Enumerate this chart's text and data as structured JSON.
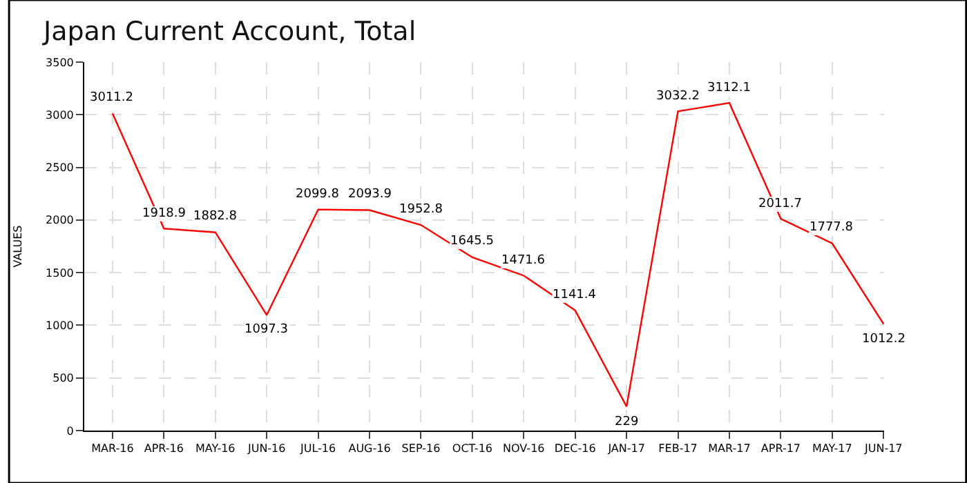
{
  "chart_data": {
    "type": "line",
    "title": "Japan Current Account, Total",
    "ylabel": "VALUES",
    "categories": [
      "MAR-16",
      "APR-16",
      "MAY-16",
      "JUN-16",
      "JUL-16",
      "AUG-16",
      "SEP-16",
      "OCT-16",
      "NOV-16",
      "DEC-16",
      "JAN-17",
      "FEB-17",
      "MAR-17",
      "APR-17",
      "MAY-17",
      "JUN-17"
    ],
    "series": [
      {
        "color": "#ff0000",
        "values": [
          3011.2,
          1918.9,
          1882.8,
          1097.3,
          2099.8,
          2093.9,
          1952.8,
          1645.5,
          1471.6,
          1141.4,
          229,
          3032.2,
          3112.1,
          2011.7,
          1777.8,
          1012.2
        ]
      }
    ],
    "ylim": [
      0,
      3500
    ],
    "yticks": [
      0,
      500,
      1000,
      1500,
      2000,
      2500,
      3000,
      3500
    ],
    "grid": true,
    "data_labels": true,
    "marker": "none",
    "line_style": "solid"
  }
}
